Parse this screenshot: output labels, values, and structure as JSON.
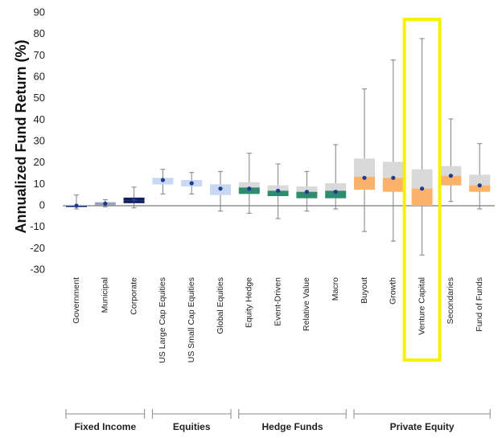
{
  "chart_data": {
    "type": "boxplot",
    "title": "",
    "ylabel": "Annualized Fund Return (%)",
    "xlabel": "",
    "ylim": [
      -30,
      90
    ],
    "yticks": [
      -30,
      -20,
      -10,
      0,
      10,
      20,
      30,
      40,
      50,
      60,
      70,
      80,
      90
    ],
    "categories": [
      {
        "name": "Government",
        "group": "Fixed Income",
        "whisker_low": -1.5,
        "q1": -0.5,
        "median": 0,
        "q3": 0.5,
        "whisker_high": 5,
        "mean": 0,
        "upper_color": "#c8d3ec",
        "lower_color": "#0f1f5c"
      },
      {
        "name": "Municipal",
        "group": "Fixed Income",
        "whisker_low": -0.5,
        "q1": 0.3,
        "median": 1.5,
        "q3": 1.8,
        "whisker_high": 2.8,
        "mean": 1,
        "upper_color": "#c8d3ec",
        "lower_color": "#9aa3bd"
      },
      {
        "name": "Corporate",
        "group": "Fixed Income",
        "whisker_low": -1,
        "q1": 1.2,
        "median": 2.5,
        "q3": 3.8,
        "whisker_high": 8.7,
        "mean": 2.7,
        "upper_color": "#0f1f5c",
        "lower_color": "#0f1f5c"
      },
      {
        "name": "US Large Cap Equities",
        "group": "Equities",
        "whisker_low": 5.5,
        "q1": 10,
        "median": 10.5,
        "q3": 13,
        "whisker_high": 17,
        "mean": 12,
        "upper_color": "#c8d8f2",
        "lower_color": "#c8d8f2"
      },
      {
        "name": "US Small Cap Equities",
        "group": "Equities",
        "whisker_low": 5.5,
        "q1": 9,
        "median": 10,
        "q3": 12,
        "whisker_high": 15.5,
        "mean": 10.5,
        "upper_color": "#c8d8f2",
        "lower_color": "#c8d8f2"
      },
      {
        "name": "Global Equities",
        "group": "Equities",
        "whisker_low": -2.5,
        "q1": 5,
        "median": 6,
        "q3": 10,
        "whisker_high": 16,
        "mean": 8,
        "upper_color": "#c8d8f2",
        "lower_color": "#c8d8f2"
      },
      {
        "name": "Equity Hedge",
        "group": "Hedge Funds",
        "whisker_low": -3.5,
        "q1": 5.5,
        "median": 8.5,
        "q3": 11,
        "whisker_high": 24.5,
        "mean": 8,
        "upper_color": "#d9d9d9",
        "lower_color": "#2e8b6e"
      },
      {
        "name": "Event-Driven",
        "group": "Hedge Funds",
        "whisker_low": -6,
        "q1": 4.5,
        "median": 7,
        "q3": 9.5,
        "whisker_high": 19.5,
        "mean": 7,
        "upper_color": "#d9d9d9",
        "lower_color": "#2e8b6e"
      },
      {
        "name": "Relative Value",
        "group": "Hedge Funds",
        "whisker_low": -2.5,
        "q1": 3.5,
        "median": 6.5,
        "q3": 9,
        "whisker_high": 16,
        "mean": 6.5,
        "upper_color": "#d9d9d9",
        "lower_color": "#2e8b6e"
      },
      {
        "name": "Macro",
        "group": "Hedge Funds",
        "whisker_low": -1.5,
        "q1": 3.5,
        "median": 7,
        "q3": 10.5,
        "whisker_high": 28.5,
        "mean": 6.5,
        "upper_color": "#d9d9d9",
        "lower_color": "#2e8b6e"
      },
      {
        "name": "Buyout",
        "group": "Private Equity",
        "whisker_low": -12,
        "q1": 7.5,
        "median": 13.5,
        "q3": 22,
        "whisker_high": 54.5,
        "mean": 13,
        "upper_color": "#d9d9d9",
        "lower_color": "#fbb26a"
      },
      {
        "name": "Growth",
        "group": "Private Equity",
        "whisker_low": -16.5,
        "q1": 6.5,
        "median": 13,
        "q3": 20.5,
        "whisker_high": 68,
        "mean": 13,
        "upper_color": "#d9d9d9",
        "lower_color": "#fbb26a"
      },
      {
        "name": "Venture Capital",
        "group": "Private Equity",
        "whisker_low": -23,
        "q1": 0,
        "median": 8,
        "q3": 17,
        "whisker_high": 78,
        "mean": 8,
        "upper_color": "#d9d9d9",
        "lower_color": "#fbb26a"
      },
      {
        "name": "Secondaries",
        "group": "Private Equity",
        "whisker_low": 2,
        "q1": 9.5,
        "median": 14,
        "q3": 18.5,
        "whisker_high": 40.5,
        "mean": 14,
        "upper_color": "#d9d9d9",
        "lower_color": "#fbb26a"
      },
      {
        "name": "Fund of Funds",
        "group": "Private Equity",
        "whisker_low": -1.5,
        "q1": 6.5,
        "median": 9.5,
        "q3": 14.5,
        "whisker_high": 29,
        "mean": 9.5,
        "upper_color": "#d9d9d9",
        "lower_color": "#fbb26a"
      }
    ],
    "groups": [
      {
        "name": "Fixed Income",
        "start": 0,
        "end": 2
      },
      {
        "name": "Equities",
        "start": 3,
        "end": 5
      },
      {
        "name": "Hedge Funds",
        "start": 6,
        "end": 9
      },
      {
        "name": "Private Equity",
        "start": 10,
        "end": 14
      }
    ],
    "highlight": {
      "category": "Venture Capital",
      "color": "#f5f200"
    },
    "colors": {
      "mean_dot": "#1f3a93",
      "whisker": "#7f7f7f",
      "zero_line": "#555555",
      "axis": "#888888"
    }
  }
}
